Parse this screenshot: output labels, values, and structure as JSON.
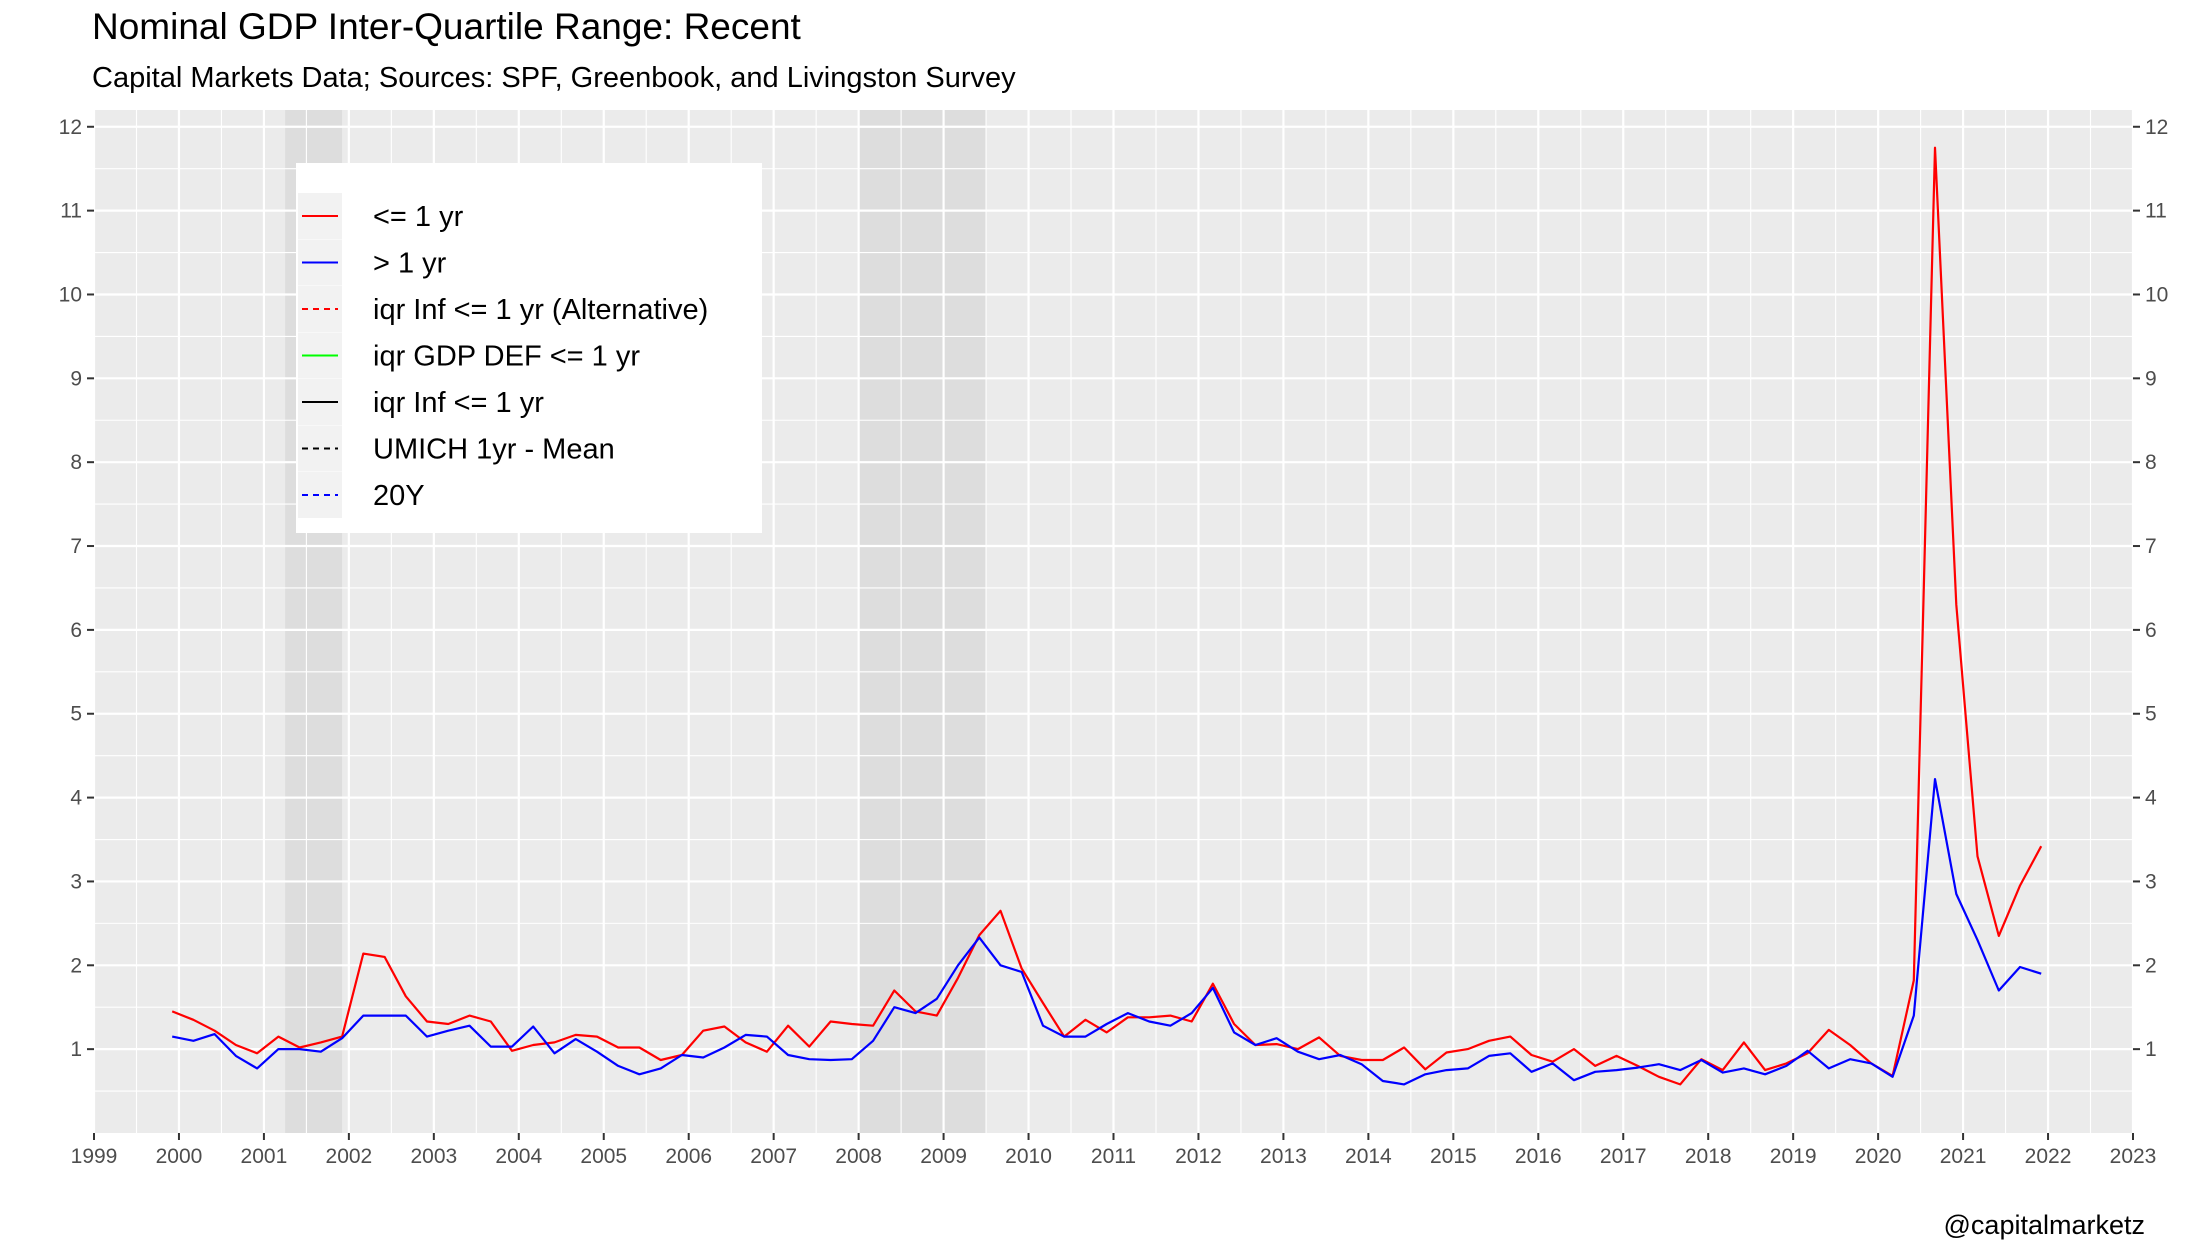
{
  "header": {
    "title": "Nominal GDP Inter-Quartile Range: Recent",
    "subtitle": "Capital Markets Data; Sources: SPF, Greenbook, and Livingston Survey"
  },
  "caption": "@capitalmarketz",
  "colors": {
    "panel_background": "#ebebeb",
    "grid_line": "#ffffff",
    "recession_shade": "#d9d9d9",
    "series_le1yr": "#ff0000",
    "series_gt1yr": "#0000ff",
    "series_iqr_gdp_def": "#00ff00",
    "series_iqr_inf": "#000000"
  },
  "chart_data": {
    "type": "line",
    "title": "Nominal GDP Inter-Quartile Range: Recent",
    "subtitle": "Capital Markets Data; Sources: SPF, Greenbook, and Livingston Survey",
    "xlabel": "",
    "ylabel": "",
    "xlim": [
      1999,
      2023
    ],
    "ylim": [
      0.0,
      12.2
    ],
    "x_ticks": [
      "1999",
      "2000",
      "2001",
      "2002",
      "2003",
      "2004",
      "2005",
      "2006",
      "2007",
      "2008",
      "2009",
      "2010",
      "2011",
      "2012",
      "2013",
      "2014",
      "2015",
      "2016",
      "2017",
      "2018",
      "2019",
      "2020",
      "2021",
      "2022",
      "2023"
    ],
    "y_ticks": [
      "1",
      "2",
      "3",
      "4",
      "5",
      "6",
      "7",
      "8",
      "9",
      "10",
      "11",
      "12"
    ],
    "secondary_y_axis": true,
    "grid": true,
    "legend_position": "top-left inside",
    "recession_periods": [
      [
        2001.25,
        2001.92
      ],
      [
        2008.0,
        2009.5
      ]
    ],
    "legend": [
      {
        "label": "<= 1 yr",
        "color": "#ff0000",
        "dash": "solid"
      },
      {
        "label": "> 1 yr",
        "color": "#0000ff",
        "dash": "solid"
      },
      {
        "label": "iqr Inf <= 1 yr (Alternative)",
        "color": "#ff0000",
        "dash": "dashed"
      },
      {
        "label": "iqr GDP DEF <= 1 yr",
        "color": "#00ff00",
        "dash": "solid"
      },
      {
        "label": "iqr Inf <= 1 yr",
        "color": "#000000",
        "dash": "solid"
      },
      {
        "label": "UMICH 1yr - Mean",
        "color": "#000000",
        "dash": "dashed"
      },
      {
        "label": "20Y",
        "color": "#0000ff",
        "dash": "dashed"
      }
    ],
    "series": [
      {
        "name": "<= 1 yr",
        "color": "#ff0000",
        "points": [
          [
            1999.92,
            1.45
          ],
          [
            2000.17,
            1.35
          ],
          [
            2000.42,
            1.22
          ],
          [
            2000.67,
            1.05
          ],
          [
            2000.92,
            0.95
          ],
          [
            2001.17,
            1.15
          ],
          [
            2001.42,
            1.02
          ],
          [
            2001.67,
            1.08
          ],
          [
            2001.92,
            1.15
          ],
          [
            2002.17,
            2.14
          ],
          [
            2002.42,
            2.1
          ],
          [
            2002.67,
            1.63
          ],
          [
            2002.92,
            1.33
          ],
          [
            2003.17,
            1.3
          ],
          [
            2003.42,
            1.4
          ],
          [
            2003.67,
            1.33
          ],
          [
            2003.92,
            0.98
          ],
          [
            2004.17,
            1.05
          ],
          [
            2004.42,
            1.08
          ],
          [
            2004.67,
            1.17
          ],
          [
            2004.92,
            1.15
          ],
          [
            2005.17,
            1.02
          ],
          [
            2005.42,
            1.02
          ],
          [
            2005.67,
            0.87
          ],
          [
            2005.92,
            0.93
          ],
          [
            2006.17,
            1.22
          ],
          [
            2006.42,
            1.27
          ],
          [
            2006.67,
            1.08
          ],
          [
            2006.92,
            0.97
          ],
          [
            2007.17,
            1.28
          ],
          [
            2007.42,
            1.03
          ],
          [
            2007.67,
            1.33
          ],
          [
            2007.92,
            1.3
          ],
          [
            2008.17,
            1.28
          ],
          [
            2008.42,
            1.7
          ],
          [
            2008.67,
            1.45
          ],
          [
            2008.92,
            1.4
          ],
          [
            2009.17,
            1.85
          ],
          [
            2009.42,
            2.36
          ],
          [
            2009.67,
            2.65
          ],
          [
            2009.92,
            1.96
          ],
          [
            2010.17,
            1.55
          ],
          [
            2010.42,
            1.15
          ],
          [
            2010.67,
            1.35
          ],
          [
            2010.92,
            1.2
          ],
          [
            2011.17,
            1.38
          ],
          [
            2011.42,
            1.38
          ],
          [
            2011.67,
            1.4
          ],
          [
            2011.92,
            1.33
          ],
          [
            2012.17,
            1.78
          ],
          [
            2012.42,
            1.3
          ],
          [
            2012.67,
            1.05
          ],
          [
            2012.92,
            1.06
          ],
          [
            2013.17,
            1.0
          ],
          [
            2013.42,
            1.14
          ],
          [
            2013.67,
            0.92
          ],
          [
            2013.92,
            0.87
          ],
          [
            2014.17,
            0.87
          ],
          [
            2014.42,
            1.02
          ],
          [
            2014.67,
            0.76
          ],
          [
            2014.92,
            0.96
          ],
          [
            2015.17,
            1.0
          ],
          [
            2015.42,
            1.1
          ],
          [
            2015.67,
            1.15
          ],
          [
            2015.92,
            0.93
          ],
          [
            2016.17,
            0.85
          ],
          [
            2016.42,
            1.0
          ],
          [
            2016.67,
            0.8
          ],
          [
            2016.92,
            0.92
          ],
          [
            2017.17,
            0.8
          ],
          [
            2017.42,
            0.67
          ],
          [
            2017.67,
            0.58
          ],
          [
            2017.92,
            0.88
          ],
          [
            2018.17,
            0.75
          ],
          [
            2018.42,
            1.08
          ],
          [
            2018.67,
            0.75
          ],
          [
            2018.92,
            0.83
          ],
          [
            2019.17,
            0.95
          ],
          [
            2019.42,
            1.23
          ],
          [
            2019.67,
            1.05
          ],
          [
            2019.92,
            0.83
          ],
          [
            2020.17,
            0.68
          ],
          [
            2020.42,
            1.82
          ],
          [
            2020.67,
            11.75
          ],
          [
            2020.92,
            6.3
          ],
          [
            2021.17,
            3.3
          ],
          [
            2021.42,
            2.35
          ],
          [
            2021.67,
            2.95
          ],
          [
            2021.92,
            3.42
          ]
        ]
      },
      {
        "name": "> 1 yr",
        "color": "#0000ff",
        "points": [
          [
            1999.92,
            1.15
          ],
          [
            2000.17,
            1.1
          ],
          [
            2000.42,
            1.18
          ],
          [
            2000.67,
            0.92
          ],
          [
            2000.92,
            0.77
          ],
          [
            2001.17,
            1.0
          ],
          [
            2001.42,
            1.0
          ],
          [
            2001.67,
            0.97
          ],
          [
            2001.92,
            1.13
          ],
          [
            2002.17,
            1.4
          ],
          [
            2002.42,
            1.4
          ],
          [
            2002.67,
            1.4
          ],
          [
            2002.92,
            1.15
          ],
          [
            2003.17,
            1.22
          ],
          [
            2003.42,
            1.28
          ],
          [
            2003.67,
            1.03
          ],
          [
            2003.92,
            1.03
          ],
          [
            2004.17,
            1.27
          ],
          [
            2004.42,
            0.95
          ],
          [
            2004.67,
            1.12
          ],
          [
            2004.92,
            0.97
          ],
          [
            2005.17,
            0.8
          ],
          [
            2005.42,
            0.7
          ],
          [
            2005.67,
            0.77
          ],
          [
            2005.92,
            0.93
          ],
          [
            2006.17,
            0.9
          ],
          [
            2006.42,
            1.02
          ],
          [
            2006.67,
            1.17
          ],
          [
            2006.92,
            1.15
          ],
          [
            2007.17,
            0.93
          ],
          [
            2007.42,
            0.88
          ],
          [
            2007.67,
            0.87
          ],
          [
            2007.92,
            0.88
          ],
          [
            2008.17,
            1.1
          ],
          [
            2008.42,
            1.5
          ],
          [
            2008.67,
            1.43
          ],
          [
            2008.92,
            1.6
          ],
          [
            2009.17,
            2.0
          ],
          [
            2009.42,
            2.33
          ],
          [
            2009.67,
            2.0
          ],
          [
            2009.92,
            1.92
          ],
          [
            2010.17,
            1.28
          ],
          [
            2010.42,
            1.15
          ],
          [
            2010.67,
            1.15
          ],
          [
            2010.92,
            1.3
          ],
          [
            2011.17,
            1.43
          ],
          [
            2011.42,
            1.33
          ],
          [
            2011.67,
            1.28
          ],
          [
            2011.92,
            1.43
          ],
          [
            2012.17,
            1.73
          ],
          [
            2012.42,
            1.2
          ],
          [
            2012.67,
            1.05
          ],
          [
            2012.92,
            1.13
          ],
          [
            2013.17,
            0.97
          ],
          [
            2013.42,
            0.88
          ],
          [
            2013.67,
            0.93
          ],
          [
            2013.92,
            0.82
          ],
          [
            2014.17,
            0.62
          ],
          [
            2014.42,
            0.58
          ],
          [
            2014.67,
            0.7
          ],
          [
            2014.92,
            0.75
          ],
          [
            2015.17,
            0.77
          ],
          [
            2015.42,
            0.92
          ],
          [
            2015.67,
            0.95
          ],
          [
            2015.92,
            0.73
          ],
          [
            2016.17,
            0.83
          ],
          [
            2016.42,
            0.63
          ],
          [
            2016.67,
            0.73
          ],
          [
            2016.92,
            0.75
          ],
          [
            2017.17,
            0.78
          ],
          [
            2017.42,
            0.82
          ],
          [
            2017.67,
            0.75
          ],
          [
            2017.92,
            0.87
          ],
          [
            2018.17,
            0.72
          ],
          [
            2018.42,
            0.77
          ],
          [
            2018.67,
            0.7
          ],
          [
            2018.92,
            0.8
          ],
          [
            2019.17,
            0.98
          ],
          [
            2019.42,
            0.77
          ],
          [
            2019.67,
            0.88
          ],
          [
            2019.92,
            0.83
          ],
          [
            2020.17,
            0.67
          ],
          [
            2020.42,
            1.4
          ],
          [
            2020.67,
            4.22
          ],
          [
            2020.92,
            2.85
          ],
          [
            2021.17,
            2.3
          ],
          [
            2021.42,
            1.7
          ],
          [
            2021.67,
            1.98
          ],
          [
            2021.92,
            1.9
          ]
        ]
      }
    ]
  }
}
